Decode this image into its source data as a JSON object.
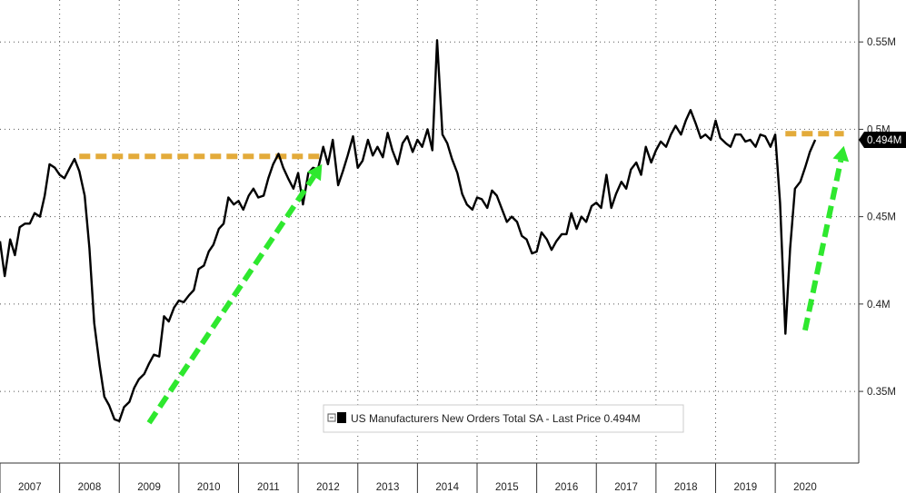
{
  "chart_data": {
    "type": "line",
    "series": [
      {
        "name": "US Manufacturers New Orders Total SA - Last Price 0.494M",
        "color": "#000000",
        "points": [
          [
            2006.0,
            0.436
          ],
          [
            2006.08,
            0.416
          ],
          [
            2006.17,
            0.437
          ],
          [
            2006.25,
            0.428
          ],
          [
            2006.33,
            0.444
          ],
          [
            2006.42,
            0.446
          ],
          [
            2006.5,
            0.446
          ],
          [
            2006.58,
            0.452
          ],
          [
            2006.67,
            0.45
          ],
          [
            2006.75,
            0.462
          ],
          [
            2006.83,
            0.48
          ],
          [
            2006.92,
            0.478
          ],
          [
            2007.0,
            0.474
          ],
          [
            2007.08,
            0.472
          ],
          [
            2007.17,
            0.478
          ],
          [
            2007.25,
            0.483
          ],
          [
            2007.33,
            0.476
          ],
          [
            2007.42,
            0.462
          ],
          [
            2007.5,
            0.432
          ],
          [
            2007.58,
            0.389
          ],
          [
            2007.67,
            0.365
          ],
          [
            2007.75,
            0.347
          ],
          [
            2007.83,
            0.342
          ],
          [
            2007.92,
            0.334
          ],
          [
            2008.0,
            0.333
          ],
          [
            2008.08,
            0.341
          ],
          [
            2008.17,
            0.344
          ],
          [
            2008.25,
            0.352
          ],
          [
            2008.33,
            0.357
          ],
          [
            2008.42,
            0.36
          ],
          [
            2008.5,
            0.366
          ],
          [
            2008.58,
            0.371
          ],
          [
            2008.67,
            0.37
          ],
          [
            2008.75,
            0.393
          ],
          [
            2008.83,
            0.39
          ],
          [
            2008.92,
            0.398
          ],
          [
            2009.0,
            0.402
          ],
          [
            2009.08,
            0.401
          ],
          [
            2009.17,
            0.405
          ],
          [
            2009.25,
            0.408
          ],
          [
            2009.33,
            0.42
          ],
          [
            2009.42,
            0.422
          ],
          [
            2009.5,
            0.43
          ],
          [
            2009.58,
            0.434
          ],
          [
            2009.67,
            0.443
          ],
          [
            2009.75,
            0.446
          ],
          [
            2009.83,
            0.461
          ],
          [
            2009.92,
            0.457
          ],
          [
            2010.0,
            0.459
          ],
          [
            2010.08,
            0.454
          ],
          [
            2010.17,
            0.462
          ],
          [
            2010.25,
            0.466
          ],
          [
            2010.33,
            0.461
          ],
          [
            2010.42,
            0.462
          ],
          [
            2010.5,
            0.472
          ],
          [
            2010.58,
            0.48
          ],
          [
            2010.67,
            0.486
          ],
          [
            2010.75,
            0.478
          ],
          [
            2010.83,
            0.472
          ],
          [
            2010.92,
            0.466
          ],
          [
            2011.0,
            0.475
          ],
          [
            2011.08,
            0.457
          ],
          [
            2011.17,
            0.475
          ],
          [
            2011.25,
            0.478
          ],
          [
            2011.33,
            0.477
          ],
          [
            2011.42,
            0.49
          ],
          [
            2011.5,
            0.48
          ],
          [
            2011.58,
            0.494
          ],
          [
            2011.67,
            0.468
          ],
          [
            2011.75,
            0.476
          ],
          [
            2011.83,
            0.485
          ],
          [
            2011.92,
            0.496
          ],
          [
            2012.0,
            0.478
          ],
          [
            2012.08,
            0.482
          ],
          [
            2012.17,
            0.494
          ],
          [
            2012.25,
            0.485
          ],
          [
            2012.33,
            0.49
          ],
          [
            2012.42,
            0.484
          ],
          [
            2012.5,
            0.498
          ],
          [
            2012.58,
            0.488
          ],
          [
            2012.67,
            0.48
          ],
          [
            2012.75,
            0.492
          ],
          [
            2012.83,
            0.496
          ],
          [
            2012.92,
            0.487
          ],
          [
            2013.0,
            0.494
          ],
          [
            2013.08,
            0.49
          ],
          [
            2013.17,
            0.5
          ],
          [
            2013.25,
            0.488
          ],
          [
            2013.33,
            0.551
          ],
          [
            2013.42,
            0.497
          ],
          [
            2013.5,
            0.492
          ],
          [
            2013.58,
            0.483
          ],
          [
            2013.67,
            0.475
          ],
          [
            2013.75,
            0.463
          ],
          [
            2013.83,
            0.457
          ],
          [
            2013.92,
            0.454
          ],
          [
            2014.0,
            0.461
          ],
          [
            2014.08,
            0.46
          ],
          [
            2014.17,
            0.455
          ],
          [
            2014.25,
            0.465
          ],
          [
            2014.33,
            0.462
          ],
          [
            2014.42,
            0.454
          ],
          [
            2014.5,
            0.447
          ],
          [
            2014.58,
            0.45
          ],
          [
            2014.67,
            0.447
          ],
          [
            2014.75,
            0.439
          ],
          [
            2014.83,
            0.437
          ],
          [
            2014.92,
            0.429
          ],
          [
            2015.0,
            0.43
          ],
          [
            2015.08,
            0.441
          ],
          [
            2015.17,
            0.437
          ],
          [
            2015.25,
            0.431
          ],
          [
            2015.33,
            0.436
          ],
          [
            2015.42,
            0.44
          ],
          [
            2015.5,
            0.44
          ],
          [
            2015.58,
            0.452
          ],
          [
            2015.67,
            0.443
          ],
          [
            2015.75,
            0.45
          ],
          [
            2015.83,
            0.447
          ],
          [
            2015.92,
            0.456
          ],
          [
            2016.0,
            0.458
          ],
          [
            2016.08,
            0.455
          ],
          [
            2016.17,
            0.474
          ],
          [
            2016.25,
            0.455
          ],
          [
            2016.33,
            0.463
          ],
          [
            2016.42,
            0.47
          ],
          [
            2016.5,
            0.466
          ],
          [
            2016.58,
            0.477
          ],
          [
            2016.67,
            0.481
          ],
          [
            2016.75,
            0.474
          ],
          [
            2016.83,
            0.49
          ],
          [
            2016.92,
            0.481
          ],
          [
            2017.0,
            0.488
          ],
          [
            2017.08,
            0.493
          ],
          [
            2017.17,
            0.49
          ],
          [
            2017.25,
            0.497
          ],
          [
            2017.33,
            0.502
          ],
          [
            2017.42,
            0.497
          ],
          [
            2017.5,
            0.505
          ],
          [
            2017.58,
            0.511
          ],
          [
            2017.67,
            0.503
          ],
          [
            2017.75,
            0.495
          ],
          [
            2017.83,
            0.497
          ],
          [
            2017.92,
            0.494
          ],
          [
            2018.0,
            0.505
          ],
          [
            2018.08,
            0.495
          ],
          [
            2018.17,
            0.492
          ],
          [
            2018.25,
            0.49
          ],
          [
            2018.33,
            0.497
          ],
          [
            2018.42,
            0.497
          ],
          [
            2018.5,
            0.493
          ],
          [
            2018.58,
            0.494
          ],
          [
            2018.67,
            0.49
          ],
          [
            2018.75,
            0.497
          ],
          [
            2018.83,
            0.496
          ],
          [
            2018.92,
            0.49
          ],
          [
            2019.0,
            0.497
          ],
          [
            2019.08,
            0.458
          ],
          [
            2019.17,
            0.383
          ],
          [
            2019.25,
            0.432
          ],
          [
            2019.33,
            0.466
          ],
          [
            2019.42,
            0.47
          ],
          [
            2019.5,
            0.478
          ],
          [
            2019.58,
            0.487
          ],
          [
            2019.67,
            0.494
          ]
        ]
      }
    ],
    "x_ticks": [
      "2007",
      "2008",
      "2009",
      "2010",
      "2011",
      "2012",
      "2013",
      "2014",
      "2015",
      "2016",
      "2017",
      "2018",
      "2019",
      "2020"
    ],
    "y_ticks": [
      "0.35M",
      "0.4M",
      "0.45M",
      "0.5M",
      "0.55M"
    ],
    "y_tick_values": [
      0.35,
      0.4,
      0.45,
      0.5,
      0.55
    ],
    "xlim": [
      2006.0,
      2020.4
    ],
    "ylim": [
      0.309,
      0.574
    ],
    "last_value_label": "0.494M",
    "last_value": 0.494,
    "legend": {
      "text": "US Manufacturers New Orders Total SA - Last Price 0.494M",
      "placement": "bottom-center"
    },
    "annotations": {
      "orange_dashed_lines": [
        {
          "x_start": 2007.33,
          "x_end": 2011.42,
          "y": 0.4845
        },
        {
          "x_start": 2019.17,
          "x_end": 2020.15,
          "y": 0.4975
        }
      ],
      "green_dashed_arrows": [
        {
          "x_start": 2008.5,
          "y_start": 0.332,
          "x_end": 2011.4,
          "y_end": 0.48
        },
        {
          "x_start": 2019.5,
          "y_start": 0.385,
          "x_end": 2020.15,
          "y_end": 0.4905
        }
      ],
      "orange_color": "#e3ab3a",
      "green_color": "#2ee82e"
    },
    "grid": true
  }
}
